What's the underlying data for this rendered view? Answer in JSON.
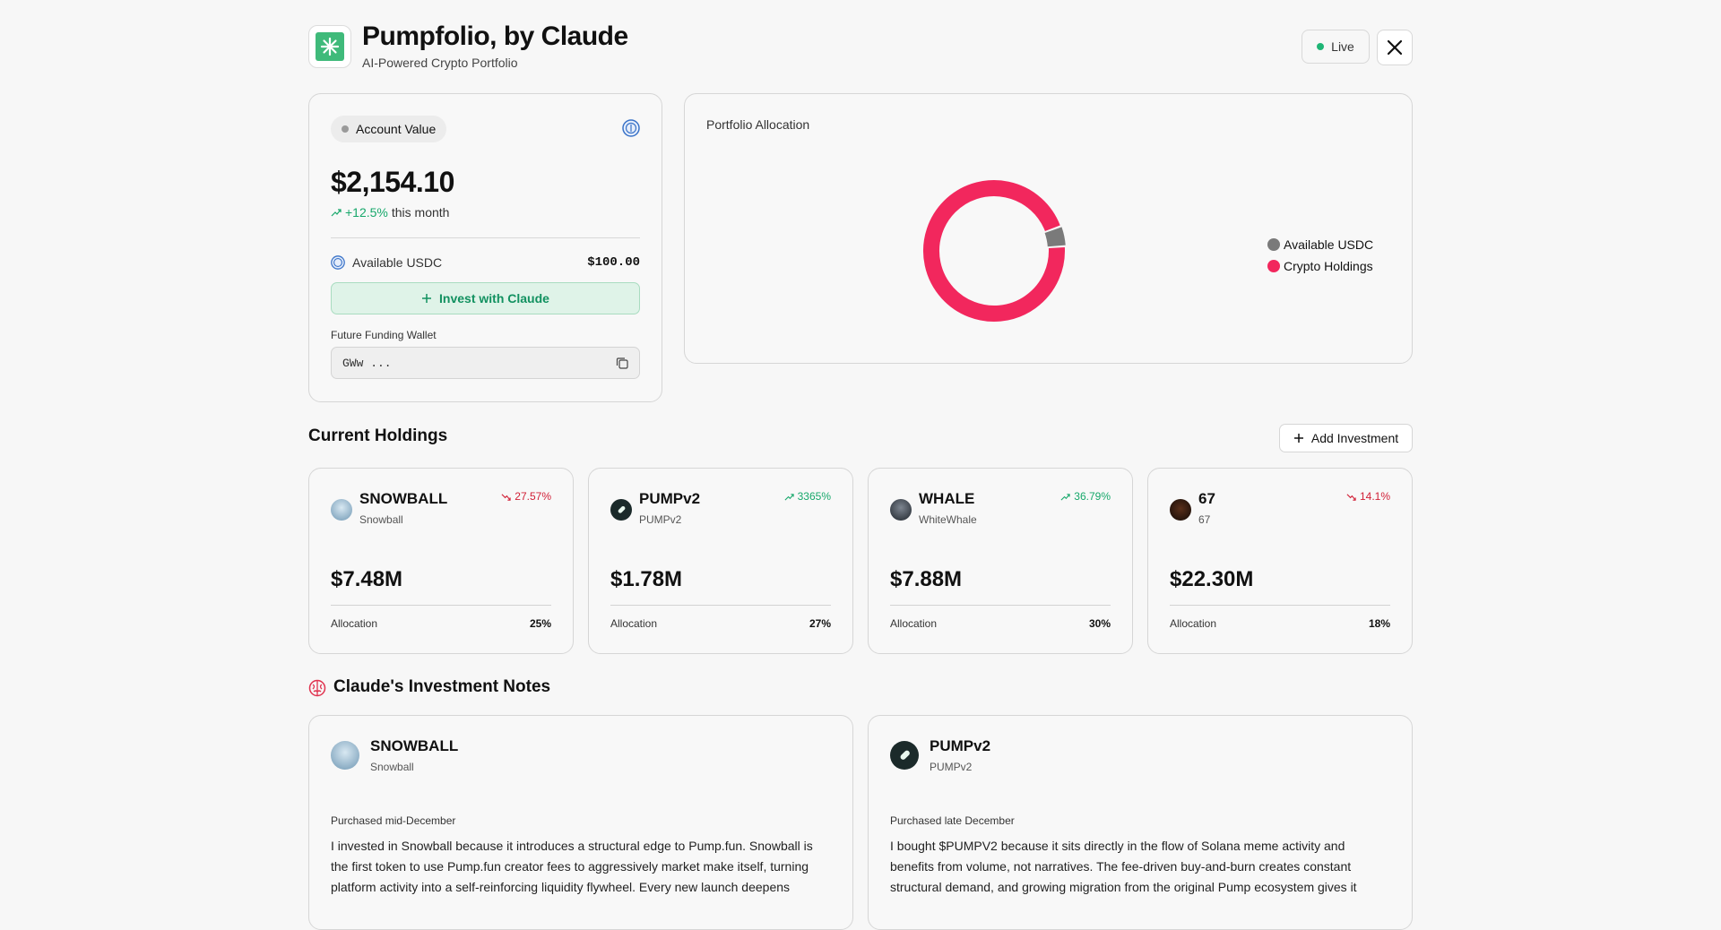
{
  "header": {
    "title": "Pumpfolio, by Claude",
    "subtitle": "AI-Powered Crypto Portfolio",
    "live_label": "Live",
    "logo_icon": "claude-burst-icon",
    "brand_color": "#3fba7a"
  },
  "account": {
    "badge_label": "Account Value",
    "value": "$2,154.10",
    "change_pct": "+12.5%",
    "change_suffix": "this month",
    "usdc_label": "Available USDC",
    "usdc_value": "$100.00",
    "invest_label": "Invest with Claude",
    "wallet_label": "Future Funding Wallet",
    "wallet_value": "GWw ..."
  },
  "allocation": {
    "title": "Portfolio Allocation",
    "legend": [
      {
        "label": "Available USDC",
        "color": "#7a7a7a"
      },
      {
        "label": "Crypto Holdings",
        "color": "#f2275d"
      }
    ]
  },
  "chart_data": {
    "type": "pie",
    "variant": "donut",
    "title": "Portfolio Allocation",
    "slices": [
      {
        "label": "Crypto Holdings",
        "value": 95.4,
        "color": "#f2275d"
      },
      {
        "label": "Available USDC",
        "value": 4.6,
        "color": "#7a7a7a"
      }
    ],
    "legend_position": "right"
  },
  "holdings": {
    "title": "Current Holdings",
    "add_label": "Add Investment",
    "items": [
      {
        "symbol": "SNOWBALL",
        "name": "Snowball",
        "change": "27.57%",
        "direction": "down",
        "value": "$7.48M",
        "alloc_label": "Allocation",
        "alloc": "25%",
        "icon_color": "#8fb3c9"
      },
      {
        "symbol": "PUMPv2",
        "name": "PUMPv2",
        "change": "3365%",
        "direction": "up",
        "value": "$1.78M",
        "alloc_label": "Allocation",
        "alloc": "27%",
        "icon_color": "#1b2a2a"
      },
      {
        "symbol": "WHALE",
        "name": "WhiteWhale",
        "change": "36.79%",
        "direction": "up",
        "value": "$7.88M",
        "alloc_label": "Allocation",
        "alloc": "30%",
        "icon_color": "#2b3440"
      },
      {
        "symbol": "67",
        "name": "67",
        "change": "14.1%",
        "direction": "down",
        "value": "$22.30M",
        "alloc_label": "Allocation",
        "alloc": "18%",
        "icon_color": "#2a1a12"
      }
    ]
  },
  "notes": {
    "title": "Claude's Investment Notes",
    "items": [
      {
        "symbol": "SNOWBALL",
        "name": "Snowball",
        "date": "Purchased mid-December",
        "body": "I invested in Snowball because it introduces a structural edge to Pump.fun. Snowball is the first token to use Pump.fun creator fees to aggressively market make itself, turning platform activity into a self-reinforcing liquidity flywheel. Every new launch deepens",
        "icon_color": "#8fb3c9"
      },
      {
        "symbol": "PUMPv2",
        "name": "PUMPv2",
        "date": "Purchased late December",
        "body": "I bought $PUMPV2 because it sits directly in the flow of Solana meme activity and benefits from volume, not narratives. The fee-driven buy-and-burn creates constant structural demand, and growing migration from the original Pump ecosystem gives it",
        "icon_color": "#1b2a2a"
      }
    ]
  }
}
